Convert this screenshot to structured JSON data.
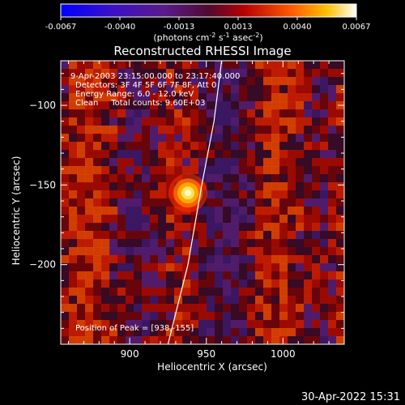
{
  "chart_data": {
    "type": "heatmap",
    "title": "Reconstructed RHESSI Image",
    "xlabel": "Heliocentric X (arcsec)",
    "ylabel": "Heliocentric Y (arcsec)",
    "xlim": [
      855,
      1040
    ],
    "ylim": [
      -250,
      -72
    ],
    "x_ticks": [
      900,
      950,
      1000
    ],
    "y_ticks": [
      -100,
      -150,
      -200
    ],
    "colorbar": {
      "range": [
        -0.0067,
        0.0067
      ],
      "ticks": [
        "-0.0067",
        "-0.0040",
        "-0.0013",
        "0.0013",
        "0.0040",
        "0.0067"
      ],
      "label_main": "(photons cm",
      "label_exp1": "-2",
      "label_mid1": " s",
      "label_exp2": "-1",
      "label_mid2": " asec",
      "label_exp3": "-2",
      "label_end": ")"
    },
    "annotations": [
      "9-Apr-2003 23:15:00.000 to 23:17:40.000",
      "Detectors: 3F 4F 5F 6F 7F 8F, Att 0",
      "Energy Range: 6.0 - 12.0 keV",
      "Clean     Total counts: 9.60E+03"
    ],
    "peak_label": "Position of Peak = [938,-155]",
    "peak": {
      "x": 938,
      "y": -155,
      "value": 0.0067
    },
    "limb": [
      {
        "x": 925,
        "y": -250
      },
      {
        "x": 938,
        "y": -200
      },
      {
        "x": 947,
        "y": -150
      },
      {
        "x": 955,
        "y": -110
      },
      {
        "x": 960,
        "y": -72
      }
    ]
  },
  "footer": {
    "date": "30-Apr-2022 15:31"
  }
}
